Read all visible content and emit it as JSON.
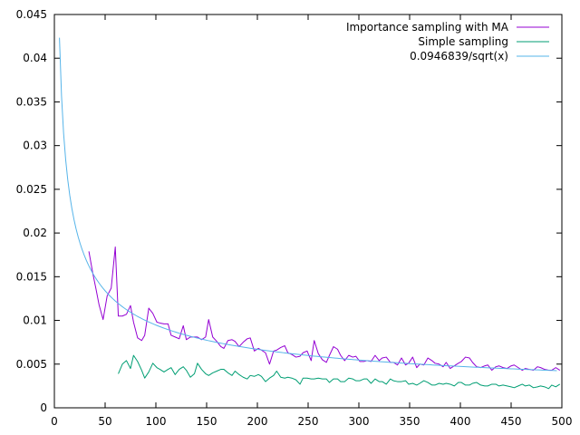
{
  "chart_data": {
    "type": "line",
    "title": "",
    "xlabel": "",
    "ylabel": "",
    "xlim": [
      0,
      500
    ],
    "ylim": [
      0,
      0.045
    ],
    "grid": false,
    "legend_position": "top-right",
    "x_ticks": [
      {
        "value": 0,
        "label": "0"
      },
      {
        "value": 50,
        "label": "50"
      },
      {
        "value": 100,
        "label": "100"
      },
      {
        "value": 150,
        "label": "150"
      },
      {
        "value": 200,
        "label": "200"
      },
      {
        "value": 250,
        "label": "250"
      },
      {
        "value": 300,
        "label": "300"
      },
      {
        "value": 350,
        "label": "350"
      },
      {
        "value": 400,
        "label": "400"
      },
      {
        "value": 450,
        "label": "450"
      },
      {
        "value": 500,
        "label": "500"
      }
    ],
    "y_ticks": [
      {
        "value": 0,
        "label": "0"
      },
      {
        "value": 0.005,
        "label": "0.005"
      },
      {
        "value": 0.01,
        "label": "0.01"
      },
      {
        "value": 0.015,
        "label": "0.015"
      },
      {
        "value": 0.02,
        "label": "0.02"
      },
      {
        "value": 0.025,
        "label": "0.025"
      },
      {
        "value": 0.03,
        "label": "0.03"
      },
      {
        "value": 0.035,
        "label": "0.035"
      },
      {
        "value": 0.04,
        "label": "0.04"
      },
      {
        "value": 0.045,
        "label": "0.045"
      }
    ],
    "series": [
      {
        "name": "Importance sampling with MA",
        "color": "#9400d3",
        "x": [
          34,
          38,
          41,
          44,
          48,
          52,
          56,
          60,
          63,
          67,
          71,
          75,
          78,
          82,
          86,
          89,
          93,
          97,
          101,
          104,
          108,
          112,
          115,
          119,
          123,
          127,
          130,
          134,
          138,
          141,
          145,
          149,
          152,
          156,
          160,
          164,
          167,
          171,
          175,
          178,
          182,
          186,
          190,
          193,
          197,
          201,
          204,
          208,
          212,
          216,
          219,
          223,
          227,
          230,
          234,
          238,
          242,
          245,
          249,
          253,
          256,
          260,
          264,
          268,
          271,
          275,
          279,
          282,
          286,
          290,
          294,
          297,
          301,
          305,
          308,
          312,
          316,
          320,
          323,
          327,
          331,
          334,
          338,
          342,
          346,
          349,
          353,
          357,
          360,
          364,
          368,
          372,
          375,
          379,
          383,
          386,
          390,
          394,
          398,
          401,
          405,
          409,
          412,
          416,
          420,
          424,
          427,
          431,
          435,
          438,
          442,
          446,
          450,
          453,
          457,
          461,
          464,
          468,
          472,
          476,
          479,
          483,
          487,
          490,
          494,
          498
        ],
        "y": [
          0.0179,
          0.0153,
          0.0136,
          0.0118,
          0.0101,
          0.0128,
          0.0137,
          0.0184,
          0.0105,
          0.0105,
          0.0107,
          0.0117,
          0.0098,
          0.008,
          0.0077,
          0.0083,
          0.0114,
          0.0108,
          0.0098,
          0.0097,
          0.0096,
          0.0096,
          0.0083,
          0.0081,
          0.0079,
          0.0094,
          0.0078,
          0.0081,
          0.0081,
          0.0081,
          0.0078,
          0.0081,
          0.0101,
          0.0081,
          0.0076,
          0.007,
          0.0068,
          0.0077,
          0.0078,
          0.0076,
          0.007,
          0.0075,
          0.0079,
          0.008,
          0.0065,
          0.0068,
          0.0066,
          0.0063,
          0.005,
          0.0065,
          0.0066,
          0.0069,
          0.0071,
          0.0063,
          0.0061,
          0.0058,
          0.0059,
          0.0063,
          0.0065,
          0.0054,
          0.0077,
          0.0062,
          0.0055,
          0.0052,
          0.006,
          0.007,
          0.0067,
          0.006,
          0.0054,
          0.006,
          0.0058,
          0.0059,
          0.0053,
          0.0053,
          0.0054,
          0.0053,
          0.006,
          0.0054,
          0.0057,
          0.0058,
          0.0052,
          0.0052,
          0.0049,
          0.0057,
          0.0049,
          0.0051,
          0.0058,
          0.0046,
          0.005,
          0.0049,
          0.0057,
          0.0054,
          0.0051,
          0.005,
          0.0047,
          0.0052,
          0.0045,
          0.0048,
          0.0051,
          0.0053,
          0.0058,
          0.0057,
          0.0052,
          0.0047,
          0.0046,
          0.0048,
          0.0049,
          0.0043,
          0.0047,
          0.0048,
          0.0046,
          0.0045,
          0.0048,
          0.0049,
          0.0046,
          0.0043,
          0.0045,
          0.0044,
          0.0043,
          0.0047,
          0.0046,
          0.0044,
          0.0043,
          0.0043,
          0.0046,
          0.0043
        ]
      },
      {
        "name": "Simple sampling",
        "color": "#009e73",
        "x": [
          63,
          67,
          71,
          75,
          78,
          82,
          86,
          89,
          93,
          97,
          101,
          104,
          108,
          112,
          115,
          119,
          123,
          127,
          130,
          134,
          138,
          141,
          145,
          149,
          152,
          156,
          160,
          164,
          167,
          171,
          175,
          178,
          182,
          186,
          190,
          193,
          197,
          201,
          204,
          208,
          212,
          216,
          219,
          223,
          227,
          230,
          234,
          238,
          242,
          245,
          249,
          253,
          256,
          260,
          264,
          268,
          271,
          275,
          279,
          282,
          286,
          290,
          294,
          297,
          301,
          305,
          308,
          312,
          316,
          320,
          323,
          327,
          331,
          334,
          338,
          342,
          346,
          349,
          353,
          357,
          360,
          364,
          368,
          372,
          375,
          379,
          383,
          386,
          390,
          394,
          398,
          401,
          405,
          409,
          412,
          416,
          420,
          424,
          427,
          431,
          435,
          438,
          442,
          446,
          450,
          453,
          457,
          461,
          464,
          468,
          472,
          476,
          479,
          483,
          487,
          490,
          494,
          498
        ],
        "y": [
          0.0039,
          0.005,
          0.0054,
          0.0045,
          0.006,
          0.0053,
          0.0043,
          0.0034,
          0.0041,
          0.0051,
          0.0046,
          0.0044,
          0.0041,
          0.0044,
          0.0046,
          0.0038,
          0.0044,
          0.0047,
          0.0043,
          0.0035,
          0.0039,
          0.0051,
          0.0044,
          0.0039,
          0.0037,
          0.004,
          0.0042,
          0.0044,
          0.0044,
          0.004,
          0.0037,
          0.0042,
          0.0038,
          0.0035,
          0.0033,
          0.0037,
          0.0036,
          0.0038,
          0.0036,
          0.003,
          0.0034,
          0.0037,
          0.0042,
          0.0035,
          0.0034,
          0.0035,
          0.0034,
          0.0032,
          0.0027,
          0.0034,
          0.0034,
          0.0033,
          0.0033,
          0.0034,
          0.0033,
          0.0033,
          0.0029,
          0.0033,
          0.0033,
          0.003,
          0.003,
          0.0034,
          0.0033,
          0.0031,
          0.0031,
          0.0033,
          0.0033,
          0.0028,
          0.0033,
          0.003,
          0.003,
          0.0027,
          0.0033,
          0.0031,
          0.003,
          0.003,
          0.0031,
          0.0027,
          0.0028,
          0.0026,
          0.0028,
          0.0031,
          0.0029,
          0.0026,
          0.0026,
          0.0028,
          0.0027,
          0.0028,
          0.0027,
          0.0025,
          0.0029,
          0.0029,
          0.0026,
          0.0026,
          0.0028,
          0.0029,
          0.0026,
          0.0025,
          0.0025,
          0.0027,
          0.0027,
          0.0025,
          0.0026,
          0.0025,
          0.0024,
          0.0023,
          0.0025,
          0.0027,
          0.0025,
          0.0026,
          0.0023,
          0.0024,
          0.0025,
          0.0024,
          0.0022,
          0.0026,
          0.0024,
          0.0027
        ]
      },
      {
        "name": "0.0946839/sqrt(x)",
        "color": "#56b4e9",
        "function": {
          "coefficient": 0.0946839,
          "form": "coefficient/sqrt(x)",
          "x_from": 5,
          "x_to": 495
        }
      }
    ]
  }
}
